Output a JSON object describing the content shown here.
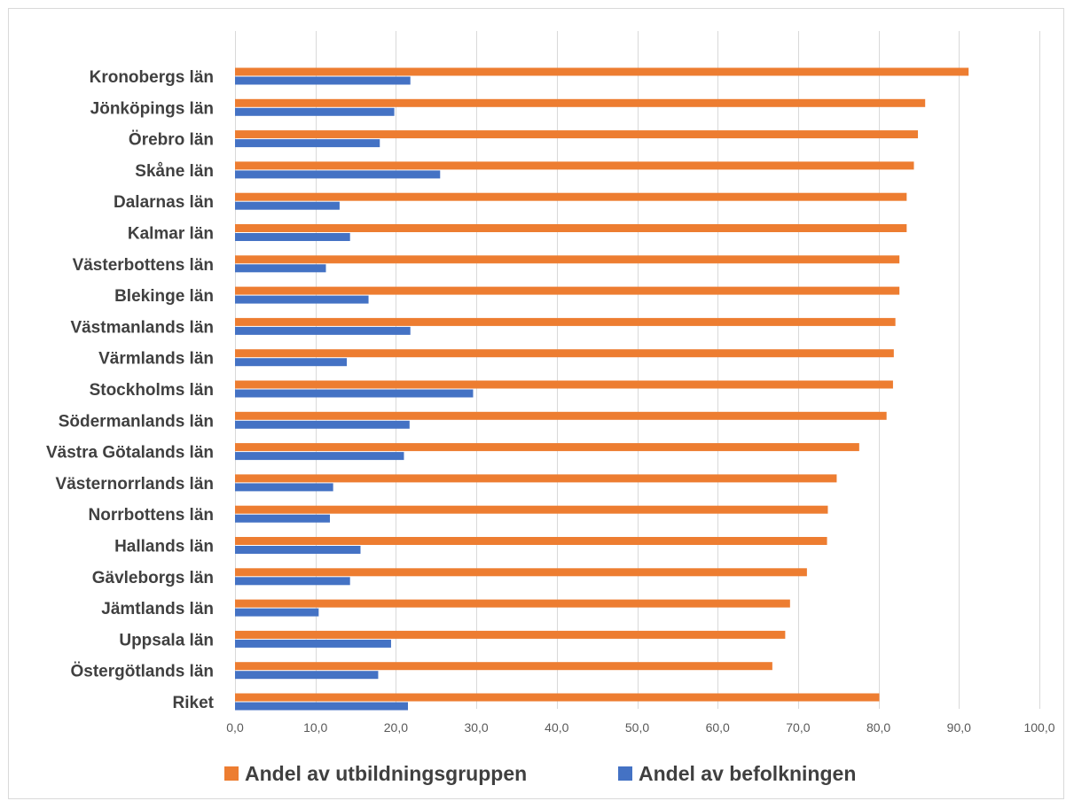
{
  "chart_data": {
    "type": "bar",
    "orientation": "horizontal",
    "categories": [
      "Kronobergs län",
      "Jönköpings län",
      "Örebro län",
      "Skåne län",
      "Dalarnas län",
      "Kalmar län",
      "Västerbottens län",
      "Blekinge län",
      "Västmanlands län",
      "Värmlands län",
      "Stockholms län",
      "Södermanlands län",
      "Västra Götalands län",
      "Västernorrlands län",
      "Norrbottens län",
      "Hallands län",
      "Gävleborgs län",
      "Jämtlands län",
      "Uppsala län",
      "Östergötlands län",
      "Riket"
    ],
    "series": [
      {
        "name": "Andel av utbildningsgruppen",
        "color": "#ED7D31",
        "values": [
          91.2,
          85.8,
          84.9,
          84.4,
          83.5,
          83.5,
          82.6,
          82.6,
          82.1,
          81.9,
          81.8,
          81.0,
          77.6,
          74.8,
          73.7,
          73.6,
          71.1,
          69.0,
          68.4,
          66.8,
          80.1
        ]
      },
      {
        "name": "Andel av befolkningen",
        "color": "#4472C4",
        "values": [
          21.8,
          19.8,
          18.0,
          25.5,
          13.0,
          14.3,
          11.3,
          16.6,
          21.8,
          13.9,
          29.6,
          21.7,
          21.0,
          12.2,
          11.8,
          15.6,
          14.3,
          10.4,
          19.4,
          17.8,
          21.5
        ]
      }
    ],
    "xlim": [
      0,
      100
    ],
    "xticks": [
      "0,0",
      "10,0",
      "20,0",
      "30,0",
      "40,0",
      "50,0",
      "60,0",
      "70,0",
      "80,0",
      "90,0",
      "100,0"
    ],
    "grid": "vertical",
    "legend": "bottom",
    "title": "",
    "xlabel": "",
    "ylabel": ""
  }
}
